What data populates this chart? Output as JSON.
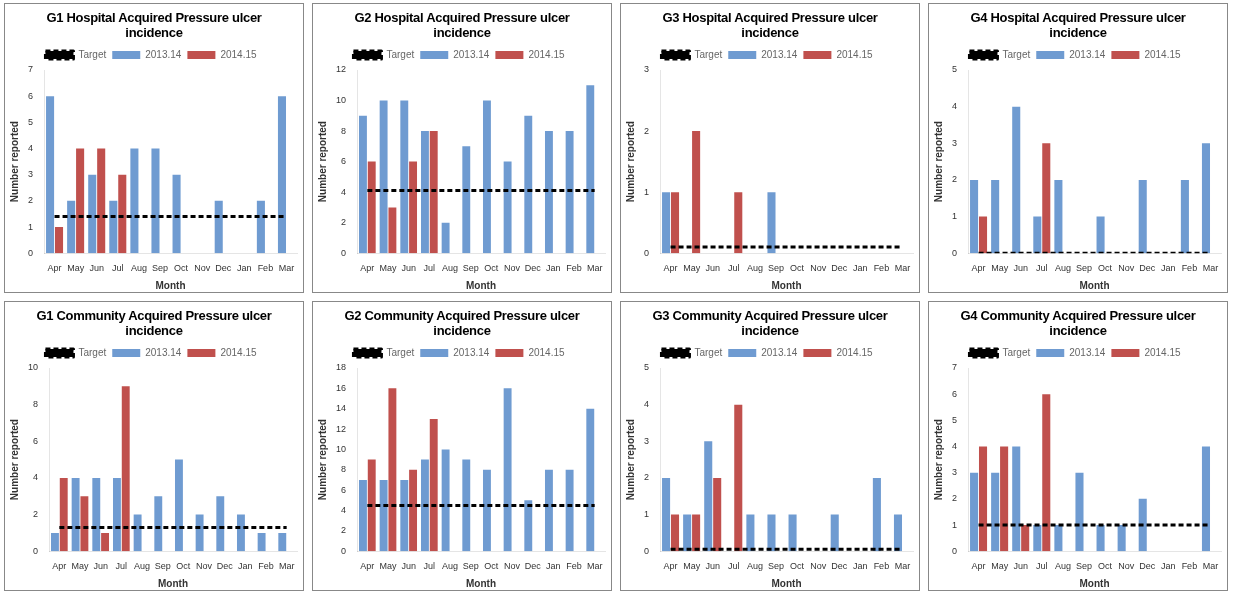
{
  "chart_data": [
    {
      "type": "bar",
      "title": "G1  Hospital Acquired Pressure ulcer incidence",
      "xlabel": "Month",
      "ylabel": "Number reported",
      "categories": [
        "Apr",
        "May",
        "Jun",
        "Jul",
        "Aug",
        "Sep",
        "Oct",
        "Nov",
        "Dec",
        "Jan",
        "Feb",
        "Mar"
      ],
      "ylim": [
        0,
        7
      ],
      "yticks": [
        0,
        1,
        2,
        3,
        4,
        5,
        6,
        7
      ],
      "grid": false,
      "legend": "top",
      "series": [
        {
          "name": "2013.14",
          "color": "#6f9bd1",
          "values": [
            6,
            2,
            3,
            2,
            4,
            4,
            3,
            0,
            2,
            0,
            2,
            6
          ]
        },
        {
          "name": "2014.15",
          "color": "#c0504d",
          "values": [
            1,
            4,
            4,
            3,
            null,
            null,
            null,
            null,
            null,
            null,
            null,
            null
          ]
        },
        {
          "name": "Target",
          "type": "line",
          "color": "#000000",
          "line_style": "dashed",
          "marker": "none",
          "values": [
            1.4,
            1.4,
            1.4,
            1.4,
            1.4,
            1.4,
            1.4,
            1.4,
            1.4,
            1.4,
            1.4,
            1.4
          ]
        }
      ]
    },
    {
      "type": "bar",
      "title": "G2 Hospital Acquired Pressure ulcer incidence",
      "xlabel": "Month",
      "ylabel": "Number reported",
      "categories": [
        "Apr",
        "May",
        "Jun",
        "Jul",
        "Aug",
        "Sep",
        "Oct",
        "Nov",
        "Dec",
        "Jan",
        "Feb",
        "Mar"
      ],
      "ylim": [
        0,
        12
      ],
      "yticks": [
        0,
        2,
        4,
        6,
        8,
        10,
        12
      ],
      "grid": false,
      "legend": "top",
      "series": [
        {
          "name": "2013.14",
          "color": "#6f9bd1",
          "values": [
            9,
            10,
            10,
            8,
            2,
            7,
            10,
            6,
            9,
            8,
            8,
            11
          ]
        },
        {
          "name": "2014.15",
          "color": "#c0504d",
          "values": [
            6,
            3,
            6,
            8,
            null,
            null,
            null,
            null,
            null,
            null,
            null,
            null
          ]
        },
        {
          "name": "Target",
          "type": "line",
          "color": "#000000",
          "line_style": "dashed",
          "marker": "none",
          "values": [
            4.1,
            4.1,
            4.1,
            4.1,
            4.1,
            4.1,
            4.1,
            4.1,
            4.1,
            4.1,
            4.1,
            4.1
          ]
        }
      ]
    },
    {
      "type": "bar",
      "title": "G3 Hospital Acquired Pressure ulcer incidence",
      "xlabel": "Month",
      "ylabel": "Number reported",
      "categories": [
        "Apr",
        "May",
        "Jun",
        "Jul",
        "Aug",
        "Sep",
        "Oct",
        "Nov",
        "Dec",
        "Jan",
        "Feb",
        "Mar"
      ],
      "ylim": [
        0,
        3
      ],
      "yticks": [
        0,
        1,
        2,
        3
      ],
      "grid": false,
      "legend": "top",
      "series": [
        {
          "name": "2013.14",
          "color": "#6f9bd1",
          "values": [
            1,
            0,
            0,
            0,
            0,
            1,
            0,
            0,
            0,
            0,
            0,
            0
          ]
        },
        {
          "name": "2014.15",
          "color": "#c0504d",
          "values": [
            1,
            2,
            0,
            1,
            null,
            null,
            null,
            null,
            null,
            null,
            null,
            null
          ]
        },
        {
          "name": "Target",
          "type": "line",
          "color": "#000000",
          "line_style": "dashed",
          "marker": "none",
          "values": [
            0.1,
            0.1,
            0.1,
            0.1,
            0.1,
            0.1,
            0.1,
            0.1,
            0.1,
            0.1,
            0.1,
            0.1
          ]
        }
      ]
    },
    {
      "type": "bar",
      "title": "G4 Hospital Acquired Pressure ulcer incidence",
      "xlabel": "Month",
      "ylabel": "Number reported",
      "categories": [
        "Apr",
        "May",
        "Jun",
        "Jul",
        "Aug",
        "Sep",
        "Oct",
        "Nov",
        "Dec",
        "Jan",
        "Feb",
        "Mar"
      ],
      "ylim": [
        0,
        5
      ],
      "yticks": [
        0,
        1,
        2,
        3,
        4,
        5
      ],
      "grid": false,
      "legend": "top",
      "series": [
        {
          "name": "2013.14",
          "color": "#6f9bd1",
          "values": [
            2,
            2,
            4,
            1,
            2,
            0,
            1,
            0,
            2,
            0,
            2,
            3
          ]
        },
        {
          "name": "2014.15",
          "color": "#c0504d",
          "values": [
            1,
            0,
            0,
            3,
            null,
            null,
            null,
            null,
            null,
            null,
            null,
            null
          ]
        },
        {
          "name": "Target",
          "type": "line",
          "color": "#000000",
          "line_style": "dashed",
          "marker": "none",
          "values": [
            0,
            0,
            0,
            0,
            0,
            0,
            0,
            0,
            0,
            0,
            0,
            0
          ]
        }
      ]
    },
    {
      "type": "bar",
      "title": "G1  Community Acquired Pressure ulcer incidence",
      "xlabel": "Month",
      "ylabel": "Number reported",
      "categories": [
        "Apr",
        "May",
        "Jun",
        "Jul",
        "Aug",
        "Sep",
        "Oct",
        "Nov",
        "Dec",
        "Jan",
        "Feb",
        "Mar"
      ],
      "ylim": [
        0,
        10
      ],
      "yticks": [
        0,
        2,
        4,
        6,
        8,
        10
      ],
      "grid": false,
      "legend": "top",
      "series": [
        {
          "name": "2013.14",
          "color": "#6f9bd1",
          "values": [
            1,
            4,
            4,
            4,
            2,
            3,
            5,
            2,
            3,
            2,
            1,
            1
          ]
        },
        {
          "name": "2014.15",
          "color": "#c0504d",
          "values": [
            4,
            3,
            1,
            9,
            null,
            null,
            null,
            null,
            null,
            null,
            null,
            null
          ]
        },
        {
          "name": "Target",
          "type": "line",
          "color": "#000000",
          "line_style": "dashed",
          "marker": "none",
          "values": [
            1.3,
            1.3,
            1.3,
            1.3,
            1.3,
            1.3,
            1.3,
            1.3,
            1.3,
            1.3,
            1.3,
            1.3
          ]
        }
      ]
    },
    {
      "type": "bar",
      "title": "G2 Community Acquired Pressure ulcer incidence",
      "xlabel": "Month",
      "ylabel": "Number reported",
      "categories": [
        "Apr",
        "May",
        "Jun",
        "Jul",
        "Aug",
        "Sep",
        "Oct",
        "Nov",
        "Dec",
        "Jan",
        "Feb",
        "Mar"
      ],
      "ylim": [
        0,
        18
      ],
      "yticks": [
        0,
        2,
        4,
        6,
        8,
        10,
        12,
        14,
        16,
        18
      ],
      "grid": false,
      "legend": "top",
      "series": [
        {
          "name": "2013.14",
          "color": "#6f9bd1",
          "values": [
            7,
            7,
            7,
            9,
            10,
            9,
            8,
            16,
            5,
            8,
            8,
            14
          ]
        },
        {
          "name": "2014.15",
          "color": "#c0504d",
          "values": [
            9,
            16,
            8,
            13,
            null,
            null,
            null,
            null,
            null,
            null,
            null,
            null
          ]
        },
        {
          "name": "Target",
          "type": "line",
          "color": "#000000",
          "line_style": "dashed",
          "marker": "none",
          "values": [
            4.5,
            4.5,
            4.5,
            4.5,
            4.5,
            4.5,
            4.5,
            4.5,
            4.5,
            4.5,
            4.5,
            4.5
          ]
        }
      ]
    },
    {
      "type": "bar",
      "title": "G3 Community Acquired Pressure ulcer incidence",
      "xlabel": "Month",
      "ylabel": "Number reported",
      "categories": [
        "Apr",
        "May",
        "Jun",
        "Jul",
        "Aug",
        "Sep",
        "Oct",
        "Nov",
        "Dec",
        "Jan",
        "Feb",
        "Mar"
      ],
      "ylim": [
        0,
        5
      ],
      "yticks": [
        0,
        1,
        2,
        3,
        4,
        5
      ],
      "grid": false,
      "legend": "top",
      "series": [
        {
          "name": "2013.14",
          "color": "#6f9bd1",
          "values": [
            2,
            1,
            3,
            0,
            1,
            1,
            1,
            0,
            1,
            0,
            2,
            1
          ]
        },
        {
          "name": "2014.15",
          "color": "#c0504d",
          "values": [
            1,
            1,
            2,
            4,
            null,
            null,
            null,
            null,
            null,
            null,
            null,
            null
          ]
        },
        {
          "name": "Target",
          "type": "line",
          "color": "#000000",
          "line_style": "dashed",
          "marker": "none",
          "values": [
            0.05,
            0.05,
            0.05,
            0.05,
            0.05,
            0.05,
            0.05,
            0.05,
            0.05,
            0.05,
            0.05,
            0.05
          ]
        }
      ]
    },
    {
      "type": "bar",
      "title": "G4 Community Acquired Pressure ulcer incidence",
      "xlabel": "Month",
      "ylabel": "Number reported",
      "categories": [
        "Apr",
        "May",
        "Jun",
        "Jul",
        "Aug",
        "Sep",
        "Oct",
        "Nov",
        "Dec",
        "Jan",
        "Feb",
        "Mar"
      ],
      "ylim": [
        0,
        7
      ],
      "yticks": [
        0,
        1,
        2,
        3,
        4,
        5,
        6,
        7
      ],
      "grid": false,
      "legend": "top",
      "series": [
        {
          "name": "2013.14",
          "color": "#6f9bd1",
          "values": [
            3,
            3,
            4,
            1,
            1,
            3,
            1,
            1,
            2,
            0,
            0,
            4
          ]
        },
        {
          "name": "2014.15",
          "color": "#c0504d",
          "values": [
            4,
            4,
            1,
            6,
            null,
            null,
            null,
            null,
            null,
            null,
            null,
            null
          ]
        },
        {
          "name": "Target",
          "type": "line",
          "color": "#000000",
          "line_style": "dashed",
          "marker": "none",
          "values": [
            1,
            1,
            1,
            1,
            1,
            1,
            1,
            1,
            1,
            1,
            1,
            1
          ]
        }
      ]
    }
  ]
}
